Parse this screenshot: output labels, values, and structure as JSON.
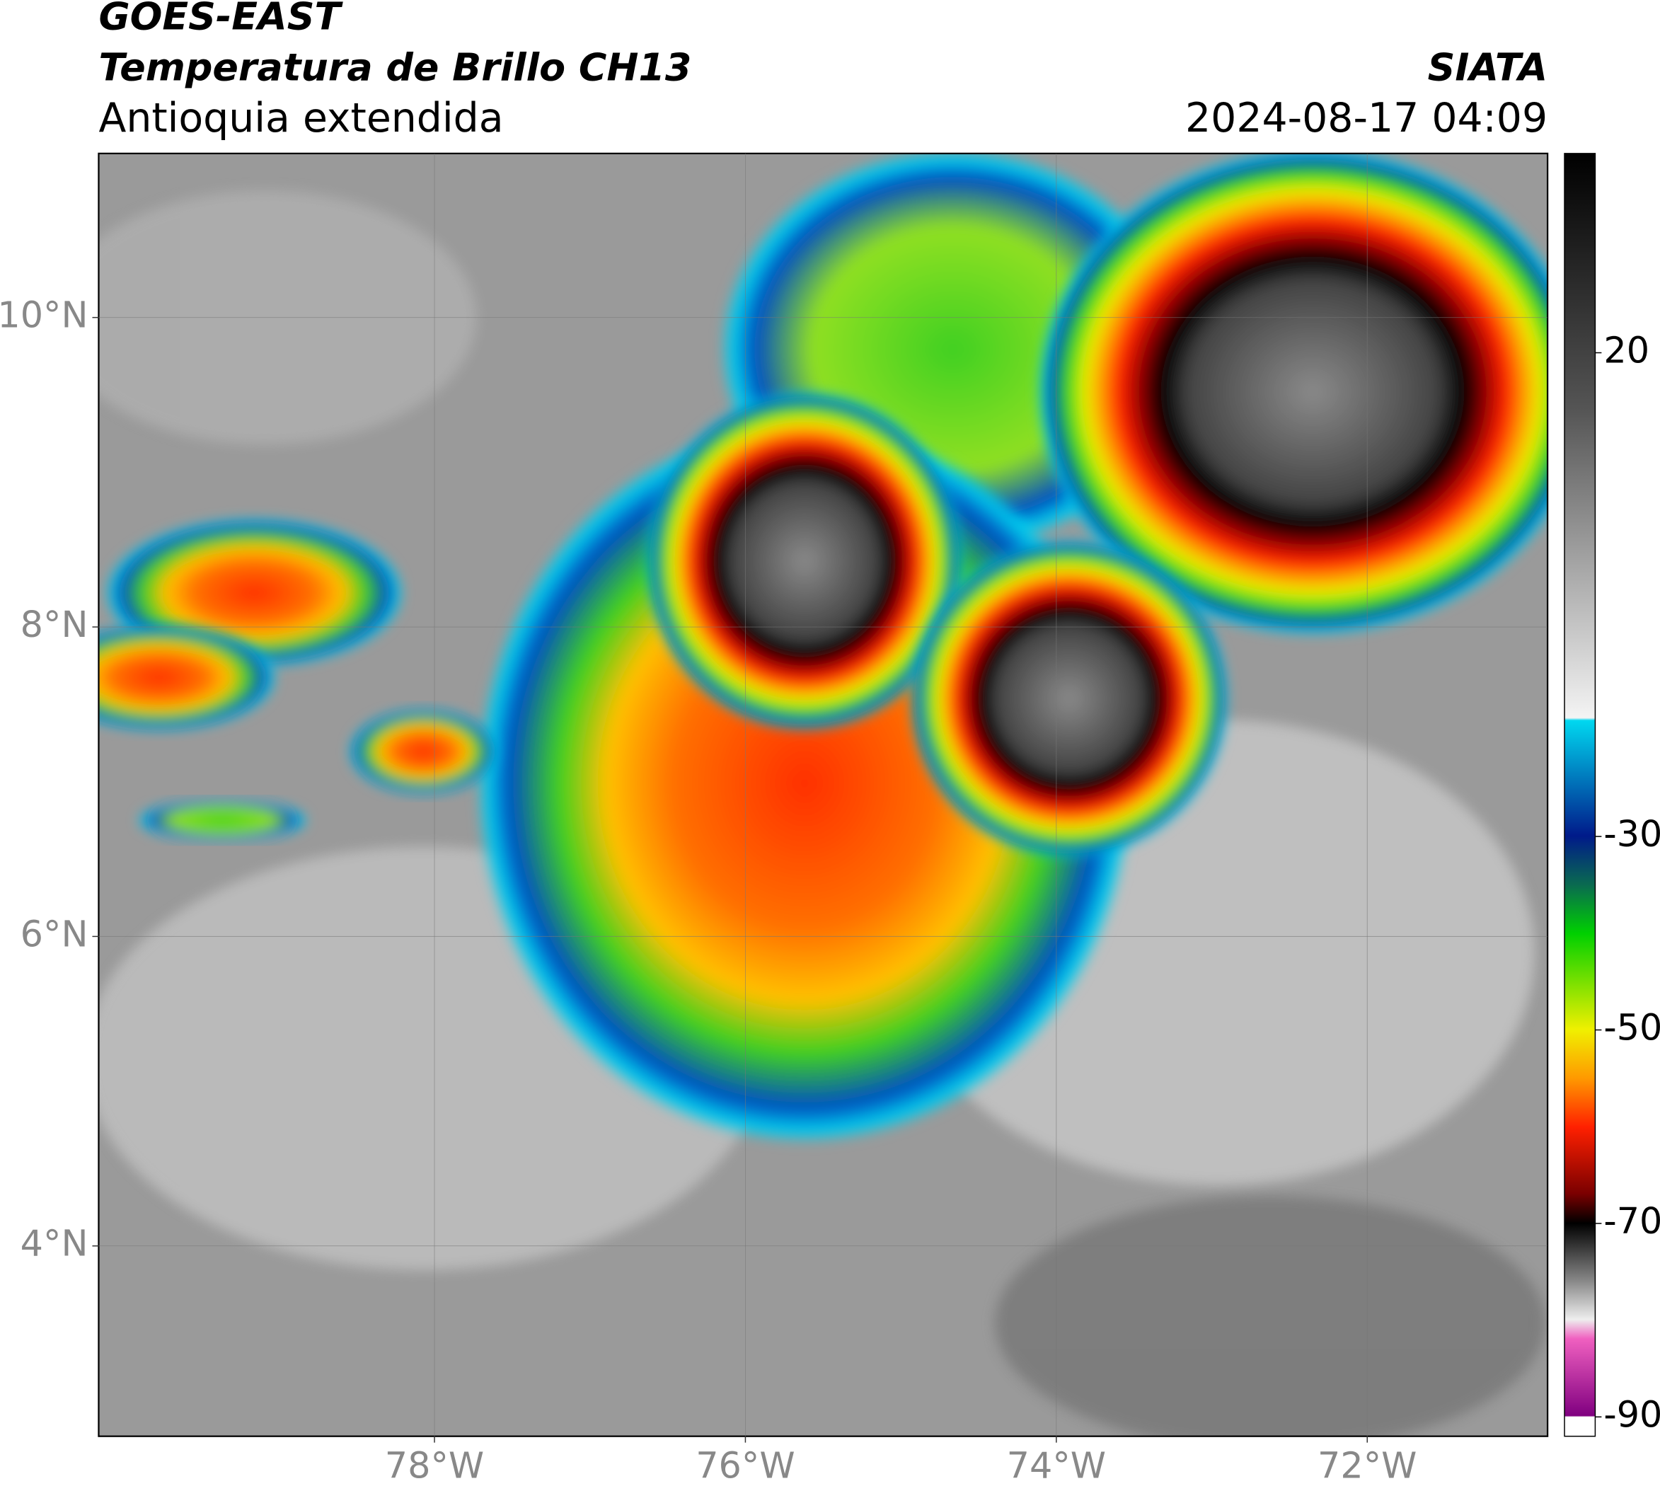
{
  "header": {
    "title": "GOES-EAST",
    "subtitle": "Temperatura de Brillo CH13",
    "region": "Antioquia extendida",
    "source": "SIATA",
    "datetime": "2024-08-17 04:09"
  },
  "map": {
    "xlim": [
      -80.16,
      -70.84
    ],
    "ylim": [
      2.77,
      11.06
    ],
    "xticks": [
      {
        "value": -78,
        "label": "78°W"
      },
      {
        "value": -76,
        "label": "76°W"
      },
      {
        "value": -74,
        "label": "74°W"
      },
      {
        "value": -72,
        "label": "72°W"
      }
    ],
    "yticks": [
      {
        "value": 10,
        "label": "10°N"
      },
      {
        "value": 8,
        "label": "8°N"
      },
      {
        "value": 6,
        "label": "6°N"
      },
      {
        "value": 4,
        "label": "4°N"
      }
    ]
  },
  "colorbar": {
    "lim": [
      -92,
      40.6
    ],
    "ticks": [
      20,
      -30,
      -50,
      -70,
      -90
    ]
  }
}
